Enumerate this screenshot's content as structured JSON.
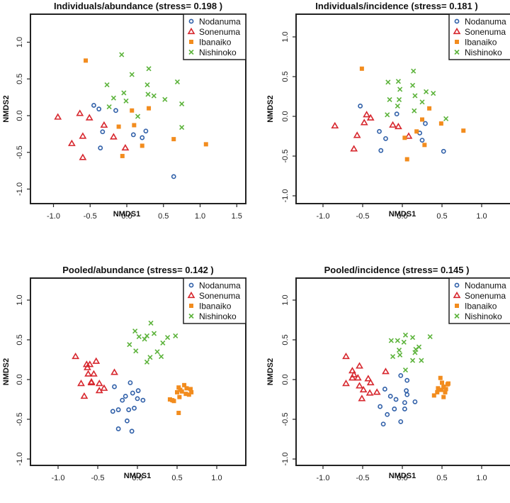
{
  "colors": {
    "Nodanuma": "#2f5fa8",
    "Sonenuma": "#d7272e",
    "Ibanaiko": "#f28c1e",
    "Nishinoko": "#5cb33b"
  },
  "legend": [
    "Nodanuma",
    "Sonenuma",
    "Ibanaiko",
    "Nishinoko"
  ],
  "chart_data": [
    {
      "type": "scatter",
      "title": "Individuals/abundance (stress= 0.198 )",
      "xlabel": "NMDS1",
      "ylabel": "NMDS2",
      "xlim": [
        -1.3,
        1.6
      ],
      "ylim": [
        -1.2,
        1.35
      ],
      "xticks": [
        -1.0,
        -0.5,
        0.0,
        0.5,
        1.0,
        1.5
      ],
      "yticks": [
        -1.0,
        -0.5,
        0.0,
        0.5,
        1.0
      ],
      "legend_position": "top-right",
      "series": [
        {
          "name": "Nodanuma",
          "points": [
            [
              -0.45,
              0.14
            ],
            [
              -0.38,
              0.09
            ],
            [
              -0.15,
              0.07
            ],
            [
              -0.33,
              -0.22
            ],
            [
              0.09,
              -0.26
            ],
            [
              0.21,
              -0.3
            ],
            [
              0.26,
              -0.21
            ],
            [
              -0.36,
              -0.44
            ],
            [
              0.64,
              -0.83
            ]
          ]
        },
        {
          "name": "Sonenuma",
          "points": [
            [
              -0.94,
              -0.02
            ],
            [
              -0.64,
              0.03
            ],
            [
              -0.51,
              -0.03
            ],
            [
              -0.31,
              -0.13
            ],
            [
              -0.6,
              -0.28
            ],
            [
              -0.18,
              -0.29
            ],
            [
              -0.75,
              -0.38
            ],
            [
              -0.02,
              -0.44
            ],
            [
              -0.6,
              -0.57
            ]
          ]
        },
        {
          "name": "Ibanaiko",
          "points": [
            [
              -0.56,
              0.75
            ],
            [
              0.07,
              0.07
            ],
            [
              0.3,
              0.1
            ],
            [
              -0.11,
              -0.15
            ],
            [
              0.1,
              -0.13
            ],
            [
              0.21,
              -0.41
            ],
            [
              0.64,
              -0.32
            ],
            [
              1.08,
              -0.39
            ],
            [
              -0.06,
              -0.55
            ]
          ]
        },
        {
          "name": "Nishinoko",
          "points": [
            [
              -0.07,
              0.83
            ],
            [
              0.3,
              0.64
            ],
            [
              0.07,
              0.56
            ],
            [
              -0.27,
              0.42
            ],
            [
              0.28,
              0.42
            ],
            [
              0.69,
              0.46
            ],
            [
              -0.04,
              0.31
            ],
            [
              -0.18,
              0.24
            ],
            [
              -0.01,
              0.2
            ],
            [
              0.29,
              0.29
            ],
            [
              0.37,
              0.27
            ],
            [
              0.52,
              0.22
            ],
            [
              0.75,
              0.16
            ],
            [
              -0.24,
              0.12
            ],
            [
              0.15,
              -0.01
            ],
            [
              0.75,
              -0.16
            ]
          ]
        }
      ]
    },
    {
      "type": "scatter",
      "title": "Individuals/incidence (stress= 0.181 )",
      "xlabel": "NMDS1",
      "ylabel": "NMDS2",
      "xlim": [
        -1.35,
        1.35
      ],
      "ylim": [
        -1.1,
        1.3
      ],
      "xticks": [
        -1.0,
        -0.5,
        0.0,
        0.5,
        1.0
      ],
      "yticks": [
        -1.0,
        -0.5,
        0.0,
        0.5,
        1.0
      ],
      "legend_position": "top-right",
      "series": [
        {
          "name": "Nodanuma",
          "points": [
            [
              -0.53,
              0.13
            ],
            [
              -0.07,
              0.03
            ],
            [
              0.29,
              -0.09
            ],
            [
              -0.29,
              -0.19
            ],
            [
              -0.21,
              -0.28
            ],
            [
              0.22,
              -0.21
            ],
            [
              0.25,
              -0.3
            ],
            [
              -0.27,
              -0.43
            ],
            [
              0.52,
              -0.44
            ]
          ]
        },
        {
          "name": "Sonenuma",
          "points": [
            [
              -0.85,
              -0.12
            ],
            [
              -0.45,
              0.02
            ],
            [
              -0.4,
              -0.02
            ],
            [
              -0.48,
              -0.08
            ],
            [
              -0.57,
              -0.24
            ],
            [
              -0.61,
              -0.41
            ],
            [
              -0.12,
              -0.11
            ],
            [
              -0.05,
              -0.13
            ],
            [
              0.08,
              -0.25
            ]
          ]
        },
        {
          "name": "Ibanaiko",
          "points": [
            [
              -0.51,
              0.6
            ],
            [
              0.34,
              0.1
            ],
            [
              0.25,
              -0.04
            ],
            [
              0.49,
              -0.09
            ],
            [
              0.18,
              -0.19
            ],
            [
              0.03,
              -0.27
            ],
            [
              0.28,
              -0.36
            ],
            [
              0.06,
              -0.54
            ],
            [
              0.77,
              -0.18
            ]
          ]
        },
        {
          "name": "Nishinoko",
          "points": [
            [
              0.14,
              0.57
            ],
            [
              -0.18,
              0.43
            ],
            [
              -0.05,
              0.44
            ],
            [
              0.13,
              0.39
            ],
            [
              -0.03,
              0.34
            ],
            [
              0.3,
              0.31
            ],
            [
              0.39,
              0.29
            ],
            [
              0.16,
              0.26
            ],
            [
              -0.16,
              0.21
            ],
            [
              -0.04,
              0.21
            ],
            [
              0.25,
              0.18
            ],
            [
              -0.06,
              0.13
            ],
            [
              0.15,
              0.07
            ],
            [
              -0.19,
              0.02
            ],
            [
              0.55,
              -0.03
            ]
          ]
        }
      ]
    },
    {
      "type": "scatter",
      "title": "Pooled/abundance (stress= 0.142 )",
      "xlabel": "NMDS1",
      "ylabel": "NMDS2",
      "xlim": [
        -1.35,
        1.35
      ],
      "ylim": [
        -1.1,
        1.3
      ],
      "xticks": [
        -1.0,
        -0.5,
        0.0,
        0.5,
        1.0
      ],
      "yticks": [
        -1.0,
        -0.5,
        0.0,
        0.5,
        1.0
      ],
      "legend_position": "top-right",
      "series": [
        {
          "name": "Nodanuma",
          "points": [
            [
              -0.09,
              -0.04
            ],
            [
              -0.29,
              -0.09
            ],
            [
              0.01,
              -0.14
            ],
            [
              -0.06,
              -0.17
            ],
            [
              -0.15,
              -0.21
            ],
            [
              -0.19,
              -0.26
            ],
            [
              0.0,
              -0.24
            ],
            [
              0.07,
              -0.26
            ],
            [
              -0.31,
              -0.4
            ],
            [
              -0.24,
              -0.38
            ],
            [
              -0.11,
              -0.38
            ],
            [
              -0.04,
              -0.36
            ],
            [
              -0.13,
              -0.52
            ],
            [
              -0.24,
              -0.62
            ],
            [
              -0.07,
              -0.65
            ]
          ]
        },
        {
          "name": "Sonenuma",
          "points": [
            [
              -0.78,
              0.29
            ],
            [
              -0.52,
              0.23
            ],
            [
              -0.64,
              0.19
            ],
            [
              -0.6,
              0.19
            ],
            [
              -0.63,
              0.15
            ],
            [
              -0.62,
              0.07
            ],
            [
              -0.55,
              0.07
            ],
            [
              -0.29,
              0.09
            ],
            [
              -0.58,
              -0.03
            ],
            [
              -0.71,
              -0.05
            ],
            [
              -0.48,
              -0.05
            ],
            [
              -0.42,
              -0.11
            ],
            [
              -0.48,
              -0.14
            ],
            [
              -0.67,
              -0.21
            ],
            [
              -0.58,
              -0.04
            ]
          ]
        },
        {
          "name": "Ibanaiko",
          "points": [
            [
              0.52,
              -0.1
            ],
            [
              0.54,
              -0.13
            ],
            [
              0.59,
              -0.07
            ],
            [
              0.62,
              -0.11
            ],
            [
              0.68,
              -0.16
            ],
            [
              0.65,
              -0.19
            ],
            [
              0.5,
              -0.16
            ],
            [
              0.61,
              -0.18
            ],
            [
              0.41,
              -0.25
            ],
            [
              0.46,
              -0.27
            ],
            [
              0.52,
              -0.42
            ],
            [
              0.56,
              -0.15
            ],
            [
              0.67,
              -0.12
            ],
            [
              0.44,
              -0.26
            ],
            [
              0.53,
              -0.22
            ]
          ]
        },
        {
          "name": "Nishinoko",
          "points": [
            [
              0.17,
              0.71
            ],
            [
              -0.03,
              0.61
            ],
            [
              0.02,
              0.54
            ],
            [
              0.12,
              0.55
            ],
            [
              0.09,
              0.51
            ],
            [
              0.21,
              0.58
            ],
            [
              0.38,
              0.53
            ],
            [
              0.48,
              0.55
            ],
            [
              0.32,
              0.46
            ],
            [
              -0.1,
              0.44
            ],
            [
              -0.02,
              0.36
            ],
            [
              0.25,
              0.35
            ],
            [
              0.3,
              0.29
            ],
            [
              0.16,
              0.28
            ],
            [
              0.12,
              0.22
            ]
          ]
        }
      ]
    },
    {
      "type": "scatter",
      "title": "Pooled/incidence (stress= 0.145 )",
      "xlabel": "NMDS1",
      "ylabel": "NMDS2",
      "xlim": [
        -1.35,
        1.35
      ],
      "ylim": [
        -1.1,
        1.3
      ],
      "xticks": [
        -1.0,
        -0.5,
        0.0,
        0.5,
        1.0
      ],
      "yticks": [
        -1.0,
        -0.5,
        0.0,
        0.5,
        1.0
      ],
      "legend_position": "top-right",
      "series": [
        {
          "name": "Nodanuma",
          "points": [
            [
              -0.02,
              0.05
            ],
            [
              0.06,
              -0.01
            ],
            [
              -0.22,
              -0.12
            ],
            [
              0.05,
              -0.14
            ],
            [
              0.06,
              -0.19
            ],
            [
              -0.15,
              -0.21
            ],
            [
              -0.08,
              -0.25
            ],
            [
              0.16,
              -0.28
            ],
            [
              0.03,
              -0.29
            ],
            [
              -0.28,
              -0.34
            ],
            [
              -0.1,
              -0.37
            ],
            [
              0.03,
              -0.37
            ],
            [
              -0.19,
              -0.44
            ],
            [
              -0.02,
              -0.53
            ],
            [
              -0.24,
              -0.56
            ]
          ]
        },
        {
          "name": "Sonenuma",
          "points": [
            [
              -0.71,
              0.29
            ],
            [
              -0.54,
              0.17
            ],
            [
              -0.63,
              0.11
            ],
            [
              -0.61,
              0.06
            ],
            [
              -0.63,
              0.02
            ],
            [
              -0.56,
              0.02
            ],
            [
              -0.43,
              0.01
            ],
            [
              -0.21,
              0.1
            ],
            [
              -0.4,
              -0.04
            ],
            [
              -0.71,
              -0.05
            ],
            [
              -0.54,
              -0.08
            ],
            [
              -0.49,
              -0.13
            ],
            [
              -0.41,
              -0.17
            ],
            [
              -0.32,
              -0.16
            ],
            [
              -0.51,
              -0.24
            ]
          ]
        },
        {
          "name": "Ibanaiko",
          "points": [
            [
              0.48,
              0.02
            ],
            [
              0.5,
              -0.04
            ],
            [
              0.57,
              -0.06
            ],
            [
              0.52,
              -0.09
            ],
            [
              0.45,
              -0.11
            ],
            [
              0.49,
              -0.13
            ],
            [
              0.55,
              -0.12
            ],
            [
              0.44,
              -0.16
            ],
            [
              0.54,
              -0.16
            ],
            [
              0.4,
              -0.2
            ],
            [
              0.52,
              -0.22
            ],
            [
              0.58,
              -0.05
            ],
            [
              0.52,
              -0.1
            ]
          ]
        },
        {
          "name": "Nishinoko",
          "points": [
            [
              0.04,
              0.56
            ],
            [
              0.13,
              0.53
            ],
            [
              0.35,
              0.54
            ],
            [
              -0.14,
              0.49
            ],
            [
              -0.06,
              0.49
            ],
            [
              0.02,
              0.47
            ],
            [
              0.21,
              0.41
            ],
            [
              0.17,
              0.38
            ],
            [
              -0.04,
              0.37
            ],
            [
              0.16,
              0.34
            ],
            [
              -0.03,
              0.31
            ],
            [
              -0.12,
              0.29
            ],
            [
              0.13,
              0.24
            ],
            [
              0.24,
              0.24
            ],
            [
              0.04,
              0.12
            ]
          ]
        }
      ]
    }
  ]
}
